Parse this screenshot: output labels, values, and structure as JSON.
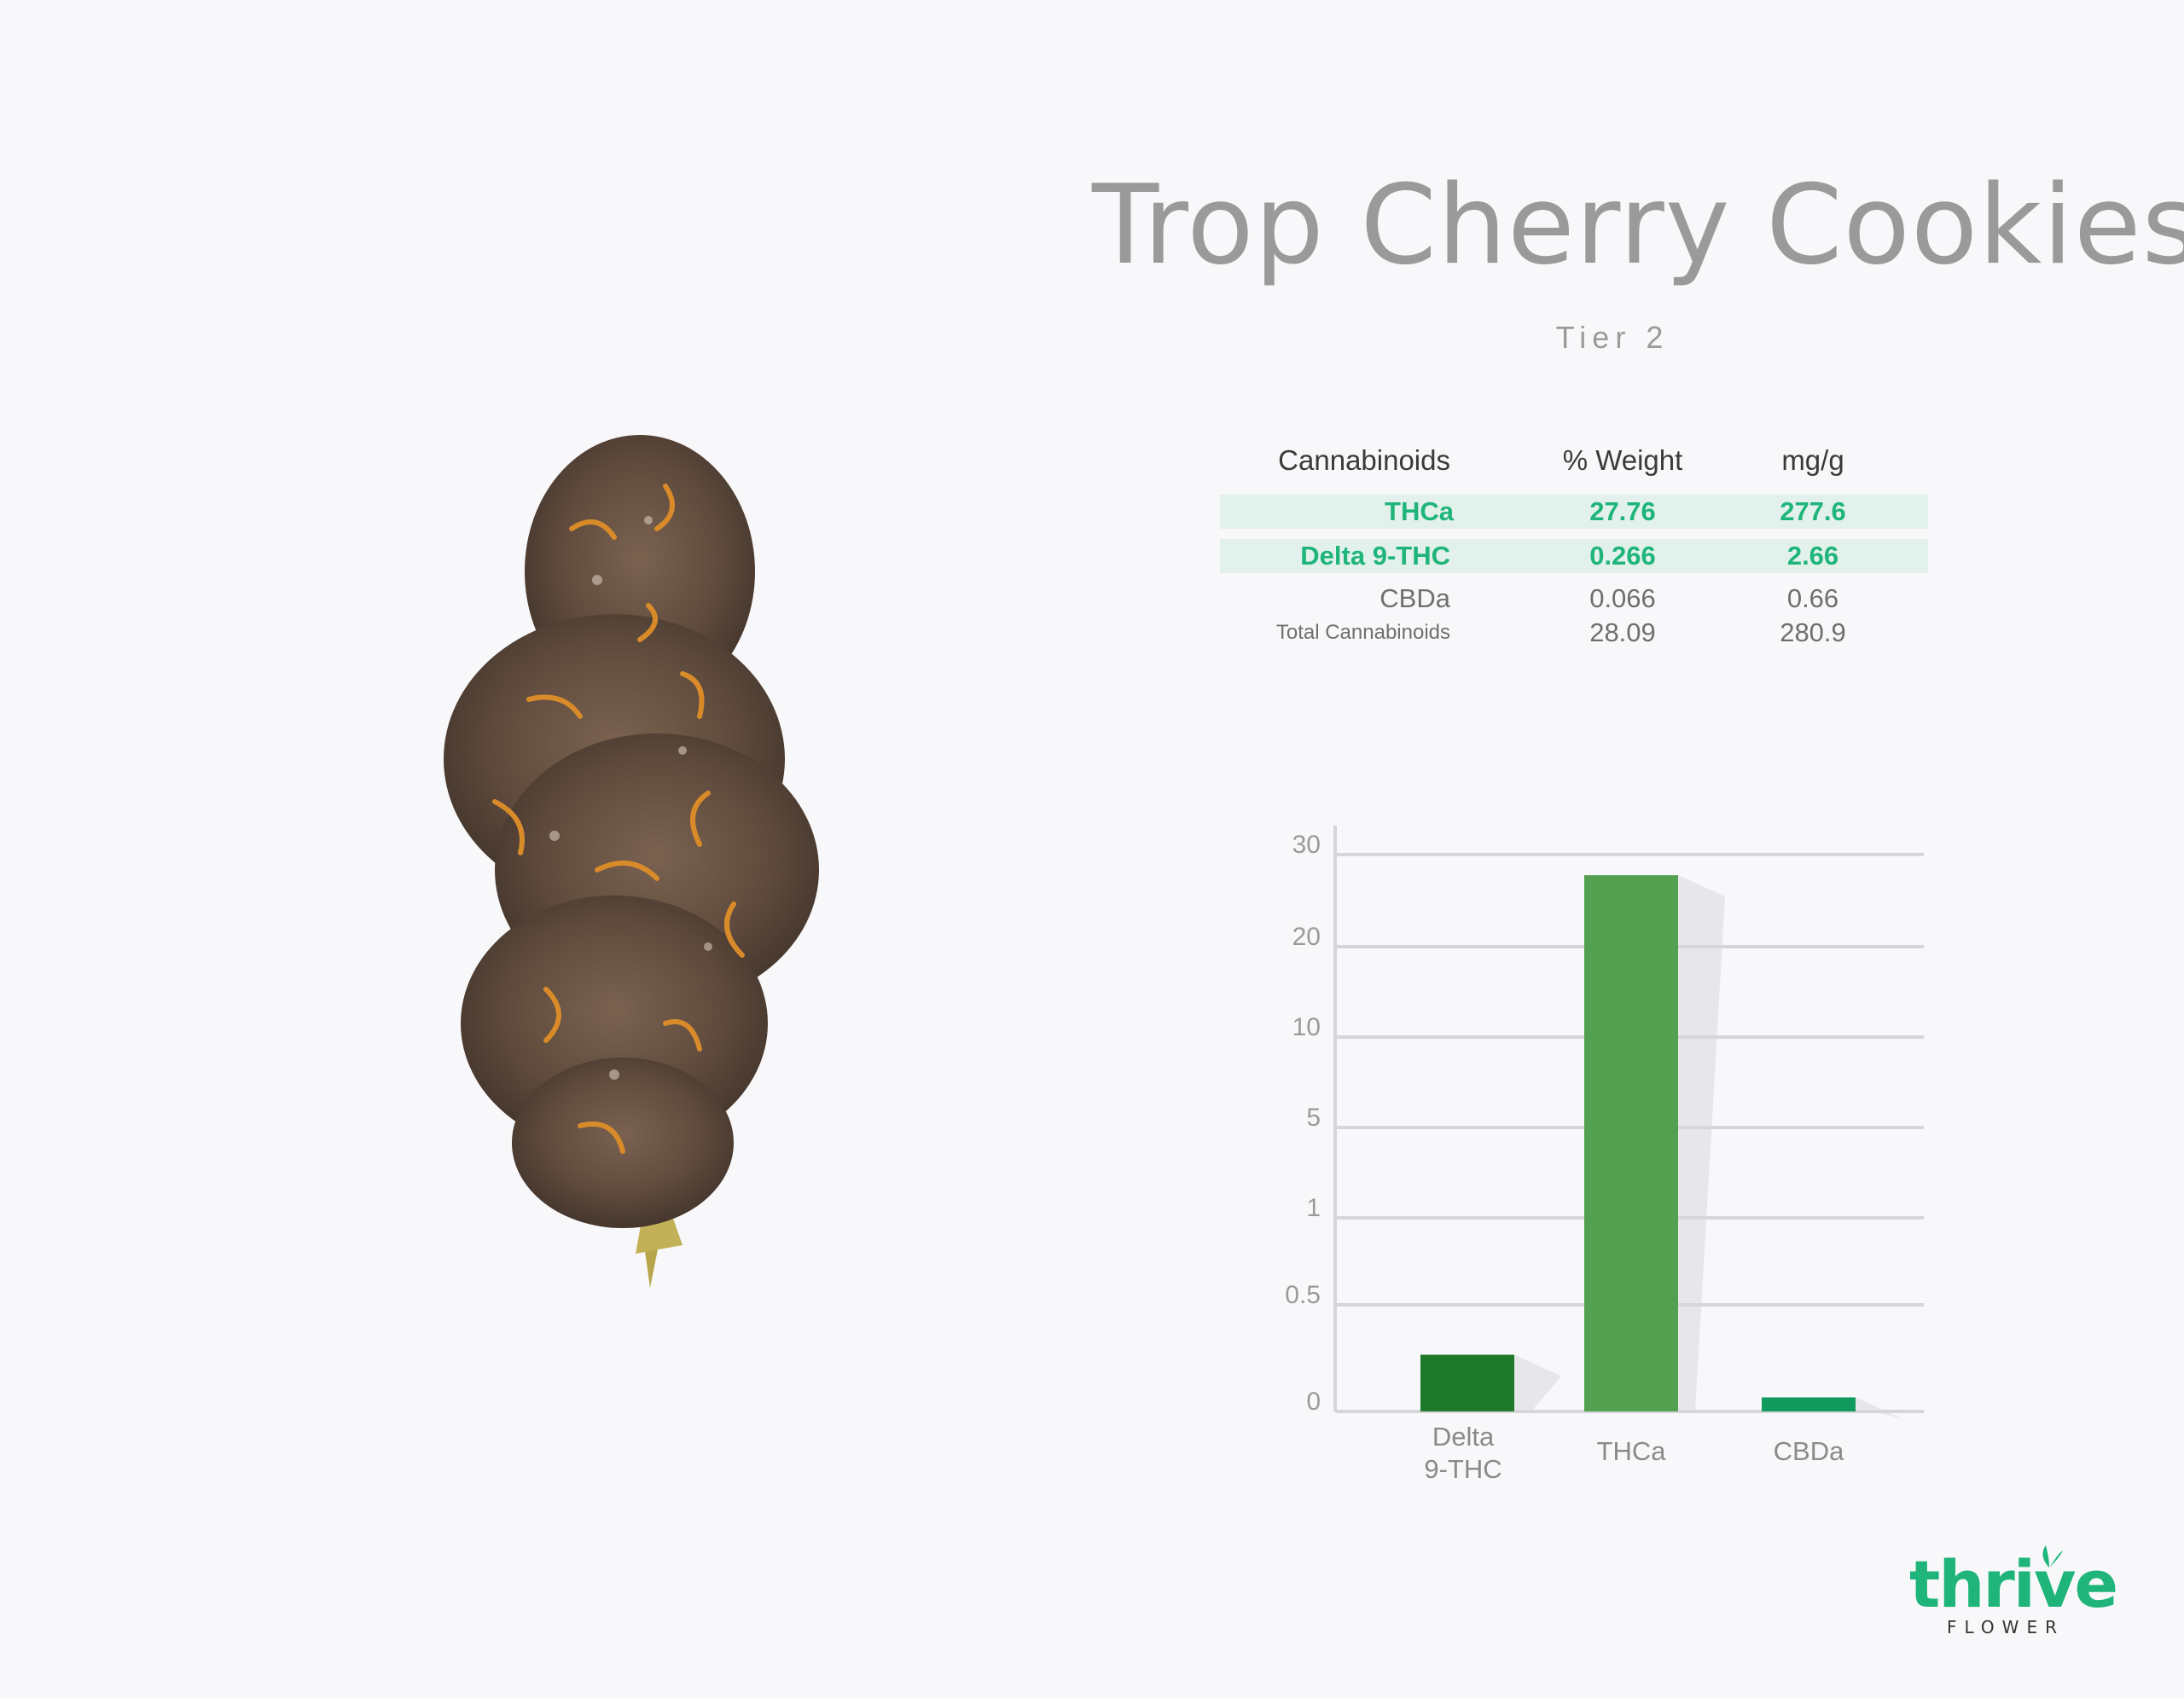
{
  "header": {
    "title": "Trop Cherry Cookies",
    "tier": "Tier 2"
  },
  "table": {
    "headers": [
      "Cannabinoids",
      "% Weight",
      "mg/g"
    ],
    "rows": [
      {
        "name": "THCa",
        "weight": "27.76",
        "mg": "277.6",
        "highlight": true
      },
      {
        "name": "Delta 9-THC",
        "weight": "0.266",
        "mg": "2.66",
        "highlight": true
      },
      {
        "name": "CBDa",
        "weight": "0.066",
        "mg": "0.66",
        "highlight": false
      },
      {
        "name": "Total Cannabinoids",
        "weight": "28.09",
        "mg": "280.9",
        "highlight": false
      }
    ]
  },
  "chart_data": {
    "type": "bar",
    "categories": [
      "Delta 9-THC",
      "THCa",
      "CBDa"
    ],
    "category_lines": [
      [
        "Delta",
        "9-THC"
      ],
      [
        "THCa"
      ],
      [
        "CBDa"
      ]
    ],
    "values": [
      0.266,
      27.76,
      0.066
    ],
    "bar_colors": [
      "#1e7a2a",
      "#52a050",
      "#109a5e"
    ],
    "y_ticks": [
      "0",
      "0.5",
      "1",
      "5",
      "10",
      "20",
      "30"
    ],
    "y_tick_values": [
      0,
      0.5,
      1,
      5,
      10,
      20,
      30
    ],
    "grid": true,
    "title": "",
    "xlabel": "",
    "ylabel": ""
  },
  "logo": {
    "word": "thrive",
    "sub": "FLOWER",
    "accent": "#1fb57a"
  }
}
